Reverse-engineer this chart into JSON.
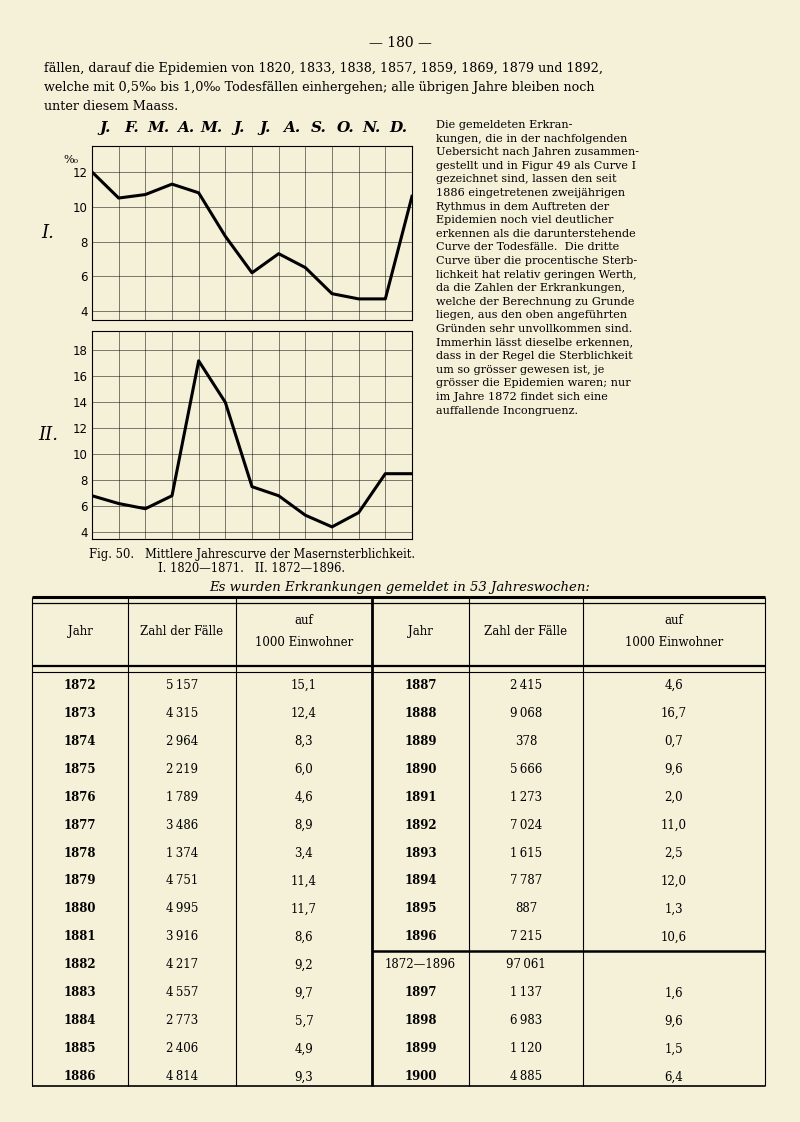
{
  "bg_color": "#f5f0d8",
  "page_title": "— 180 —",
  "header_line1": "fällen, darauf die Epidemien von 1820, 1833, 1838, 1857, 1859, 1869, 1879 und 1892,",
  "header_line2": "welche mit 0,5‰ bis 1,0‰ Todesfällen einhergehen; alle übrigen Jahre bleiben noch",
  "header_line3": "unter diesem Maass.",
  "right_text": "Die gemeldeten Erkran-\nkungen, die in der nachfolgenden\nUebersicht nach Jahren zusammen-\ngestellt und in Figur 49 als Curve I\ngezeichnet sind, lassen den seit\n1886 eingetretenen zweijährigen\nRythmus in dem Auftreten der\nEpidemien noch viel deutlicher\nerkennen als die darunterstehende\nCurve der Todesfälle.  Die dritte\nCurve über die procentische Sterb-\nlichkeit hat relativ geringen Werth,\nda die Zahlen der Erkrankungen,\nwelche der Berechnung zu Grunde\nliegen, aus den oben angeführten\nGründen sehr unvollkommen sind.\nImmerhin lässt dieselbe erkennen,\ndass in der Regel die Sterblichkeit\num so grösser gewesen ist, je\ngrösser die Epidemien waren; nur\nim Jahre 1872 findet sich eine\nauffallende Incongruenz.",
  "months": [
    "J.",
    "F.",
    "M.",
    "A.",
    "M.",
    "J.",
    "J.",
    "A.",
    "S.",
    "O.",
    "N.",
    "D."
  ],
  "curve_I_y": [
    12.0,
    10.5,
    10.7,
    11.3,
    10.8,
    8.3,
    6.2,
    7.3,
    6.5,
    5.0,
    4.7,
    4.7,
    10.6
  ],
  "curve_I_yticks": [
    4,
    6,
    8,
    10,
    12
  ],
  "curve_I_ylim": [
    3.5,
    13.5
  ],
  "curve_II_y": [
    6.8,
    6.2,
    5.8,
    6.8,
    17.2,
    14.0,
    7.5,
    6.8,
    5.3,
    4.4,
    5.5,
    8.5,
    8.5
  ],
  "curve_II_yticks": [
    4,
    6,
    8,
    10,
    12,
    14,
    16,
    18
  ],
  "curve_II_ylim": [
    3.5,
    19.5
  ],
  "fig_caption_1": "Fig. 50.   Mittlere Jahrescurve der Masernsterblichkeit.",
  "fig_caption_2": "I. 1820—1871.   II. 1872—1896.",
  "table_title": "Es wurden Erkrankungen gemeldet in 53 Jahreswochen:",
  "col_headers": [
    "Jahr",
    "Zahl der Fälle",
    "auf\n1000 Einwohner",
    "Jahr",
    "Zahl der Fälle",
    "auf\n1000 Einwohner"
  ],
  "left_data": [
    [
      "1872",
      "5 157",
      "15,1"
    ],
    [
      "1873",
      "4 315",
      "12,4"
    ],
    [
      "1874",
      "2 964",
      "8,3"
    ],
    [
      "1875",
      "2 219",
      "6,0"
    ],
    [
      "1876",
      "1 789",
      "4,6"
    ],
    [
      "1877",
      "3 486",
      "8,9"
    ],
    [
      "1878",
      "1 374",
      "3,4"
    ],
    [
      "1879",
      "4 751",
      "11,4"
    ],
    [
      "1880",
      "4 995",
      "11,7"
    ],
    [
      "1881",
      "3 916",
      "8,6"
    ],
    [
      "1882",
      "4 217",
      "9,2"
    ],
    [
      "1883",
      "4 557",
      "9,7"
    ],
    [
      "1884",
      "2 773",
      "5,7"
    ],
    [
      "1885",
      "2 406",
      "4,9"
    ],
    [
      "1886",
      "4 814",
      "9,3"
    ]
  ],
  "right_data": [
    [
      "1887",
      "2 415",
      "4,6"
    ],
    [
      "1888",
      "9 068",
      "16,7"
    ],
    [
      "1889",
      "378",
      "0,7"
    ],
    [
      "1890",
      "5 666",
      "9,6"
    ],
    [
      "1891",
      "1 273",
      "2,0"
    ],
    [
      "1892",
      "7 024",
      "11,0"
    ],
    [
      "1893",
      "1 615",
      "2,5"
    ],
    [
      "1894",
      "7 787",
      "12,0"
    ],
    [
      "1895",
      "887",
      "1,3"
    ],
    [
      "1896",
      "7 215",
      "10,6"
    ],
    [
      "1872—1896",
      "97 061",
      ""
    ],
    [
      "1897",
      "1 137",
      "1,6"
    ],
    [
      "1898",
      "6 983",
      "9,6"
    ],
    [
      "1899",
      "1 120",
      "1,5"
    ],
    [
      "1900",
      "4 885",
      "6,4"
    ]
  ]
}
